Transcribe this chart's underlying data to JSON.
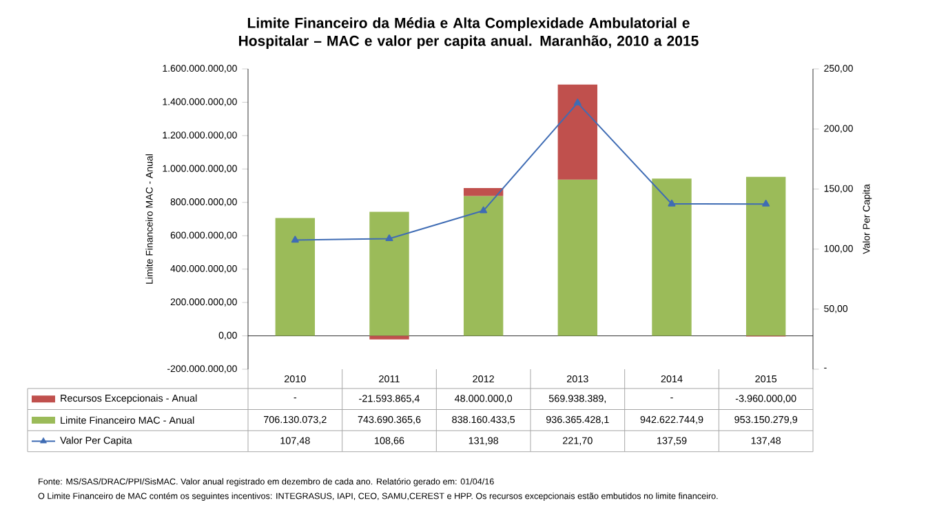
{
  "chart_data": {
    "type": "bar",
    "stacked": true,
    "title": "Limite Financeiro da Média e Alta Complexidade Ambulatorial e Hospitalar – MAC e valor per capita anual. Maranhão, 2010 a 2015",
    "ylabel": "Limite Financeiro MAC - Anual",
    "y2label": "Valor Per Capita",
    "categories": [
      "2010",
      "2011",
      "2012",
      "2013",
      "2014",
      "2015"
    ],
    "series": [
      {
        "name": "Limite Financeiro MAC - Anual",
        "color": "#9bbb59",
        "values": [
          706130073.2,
          743690365.6,
          838160433.5,
          936365428.1,
          942622744.9,
          953150279.9
        ],
        "value_labels": [
          "706.130.073,2",
          "743.690.365,6",
          "838.160.433,5",
          "936.365.428,1",
          "942.622.744,9",
          "953.150.279,9"
        ]
      },
      {
        "name": "Recursos Excepcionais - Anual",
        "color": "#c0504d",
        "values": [
          null,
          -21593865.4,
          48000000.0,
          569938389,
          null,
          -3960000.0
        ],
        "value_labels": [
          "-",
          "-21.593.865,4",
          "48.000.000,0",
          "569.938.389,",
          "-",
          "-3.960.000,00"
        ]
      },
      {
        "name": "Valor Per Capita",
        "type": "line",
        "axis": "y2",
        "color": "#3f6cb4",
        "marker": "triangle",
        "line_style": "solid",
        "values": [
          107.48,
          108.66,
          131.98,
          221.7,
          137.59,
          137.48
        ],
        "value_labels": [
          "107,48",
          "108,66",
          "131,98",
          "221,70",
          "137,59",
          "137,48"
        ]
      }
    ],
    "ylim": [
      -200000000,
      1600000000
    ],
    "yticks": [
      {
        "value": -200000000,
        "label": "-200.000.000,00"
      },
      {
        "value": 0,
        "label": "0,00"
      },
      {
        "value": 200000000,
        "label": "200.000.000,00"
      },
      {
        "value": 400000000,
        "label": "400.000.000,00"
      },
      {
        "value": 600000000,
        "label": "600.000.000,00"
      },
      {
        "value": 800000000,
        "label": "800.000.000,00"
      },
      {
        "value": 1000000000,
        "label": "1.000.000.000,00"
      },
      {
        "value": 1200000000,
        "label": "1.200.000.000,00"
      },
      {
        "value": 1400000000,
        "label": "1.400.000.000,00"
      },
      {
        "value": 1600000000,
        "label": "1.600.000.000,00"
      }
    ],
    "y2lim": [
      0,
      250
    ],
    "y2ticks": [
      {
        "value": 0,
        "label": "-"
      },
      {
        "value": 50,
        "label": "50,00"
      },
      {
        "value": 100,
        "label": "100,00"
      },
      {
        "value": 150,
        "label": "150,00"
      },
      {
        "value": 200,
        "label": "200,00"
      },
      {
        "value": 250,
        "label": "250,00"
      }
    ],
    "legend": "bottom",
    "annotations": [
      "Fonte: MS/SAS/DRAC/PPI/SisMAC. Valor anual registrado em dezembro de cada ano. Relatório gerado em: 01/04/16",
      "O Limite Financeiro de MAC contém os seguintes incentivos: INTEGRASUS, IAPI, CEO, SAMU,CEREST e HPP. Os recursos excepcionais estão embutidos no limite financeiro."
    ]
  }
}
